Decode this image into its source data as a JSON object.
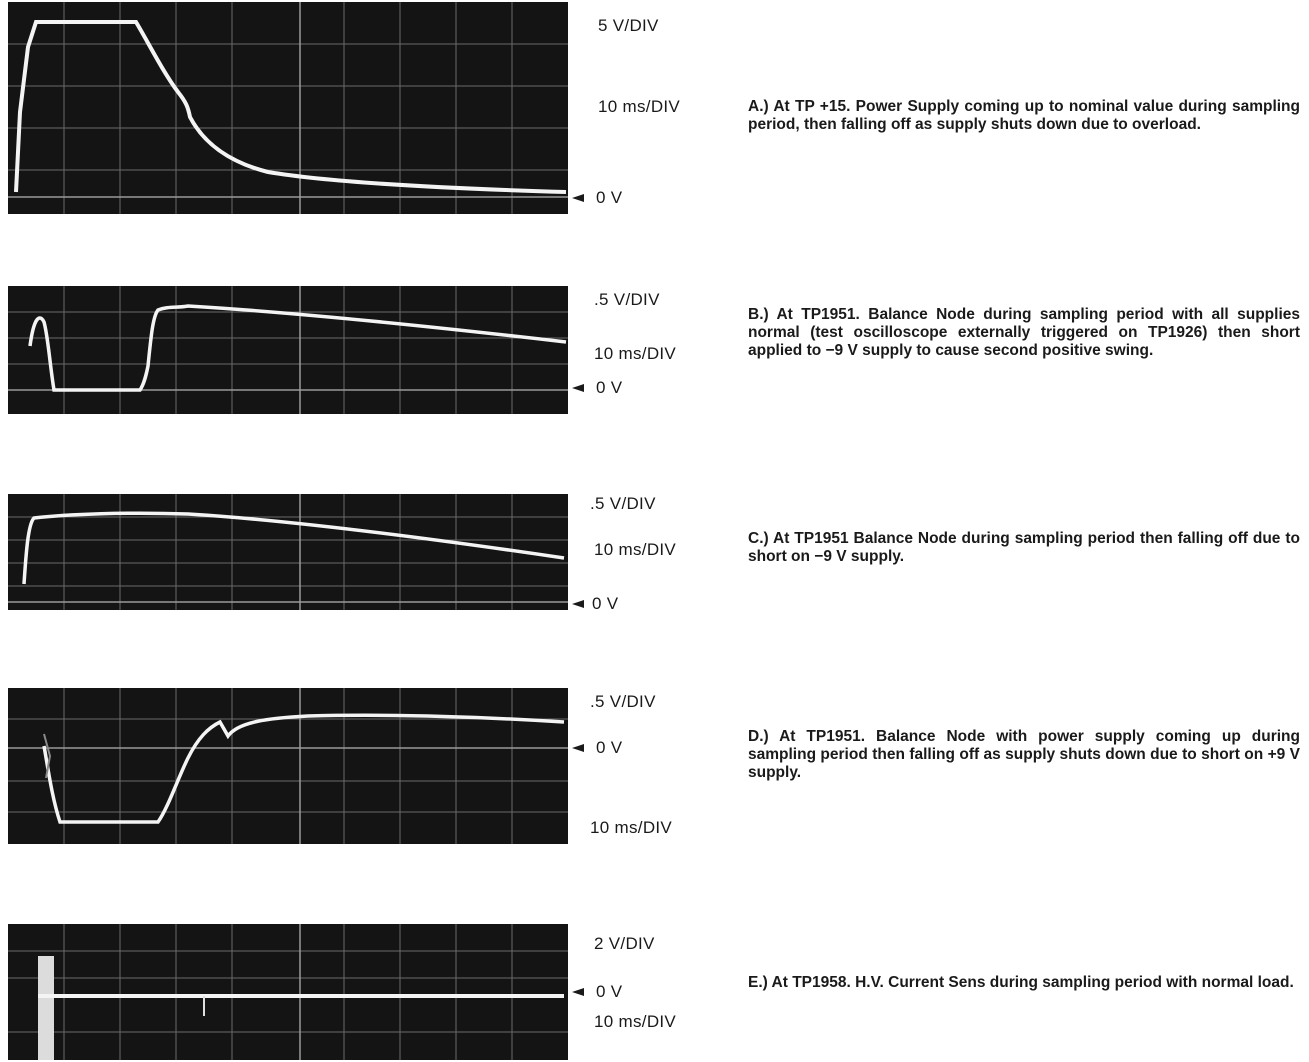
{
  "panels": [
    {
      "id": "A",
      "volts_per_div": "5 V/DIV",
      "time_per_div": "10 ms/DIV",
      "zero_label": "0 V",
      "caption": "A.) At TP +15. Power Supply coming up to nominal value during sampling period, then falling off as supply shuts down due to overload."
    },
    {
      "id": "B",
      "volts_per_div": ".5 V/DIV",
      "time_per_div": "10 ms/DIV",
      "zero_label": "0 V",
      "caption": "B.) At TP1951. Balance Node during sampling period with all supplies normal (test oscilloscope externally triggered on TP1926) then short applied to −9 V supply to cause second positive swing."
    },
    {
      "id": "C",
      "volts_per_div": ".5 V/DIV",
      "time_per_div": "10 ms/DIV",
      "zero_label": "0 V",
      "caption": "C.) At TP1951 Balance Node during sampling period then falling off due to short on −9 V supply."
    },
    {
      "id": "D",
      "volts_per_div": ".5 V/DIV",
      "time_per_div": "10 ms/DIV",
      "zero_label": "0 V",
      "caption": "D.) At TP1951. Balance Node with power supply coming up during sampling period then falling off as supply shuts down due to short on +9 V supply."
    },
    {
      "id": "E",
      "volts_per_div": "2 V/DIV",
      "time_per_div": "10 ms/DIV",
      "zero_label": "0 V",
      "caption": "E.) At TP1958. H.V. Current Sens during sampling period with normal load."
    }
  ]
}
